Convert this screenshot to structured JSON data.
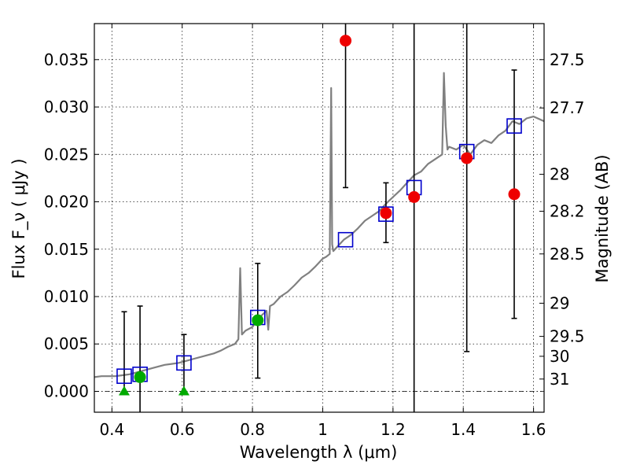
{
  "chart_data": {
    "type": "scatter",
    "xlabel": "Wavelength  λ (μm)",
    "ylabel": "Flux  F_ν  ( μJy )",
    "ylabel_right": "Magnitude (AB)",
    "xlim": [
      0.35,
      1.63
    ],
    "ylim": [
      -0.0022,
      0.0388
    ],
    "xticks": [
      0.4,
      0.6,
      0.8,
      1.0,
      1.2,
      1.4,
      1.6
    ],
    "xtick_labels": [
      "0.4",
      "0.6",
      "0.8",
      "1",
      "1.2",
      "1.4",
      "1.6"
    ],
    "yticks": [
      0.0,
      0.005,
      0.01,
      0.015,
      0.02,
      0.025,
      0.03,
      0.035
    ],
    "ytick_labels": [
      "0.000",
      "0.005",
      "0.010",
      "0.015",
      "0.020",
      "0.025",
      "0.030",
      "0.035"
    ],
    "grid": true,
    "mag_ticks": [
      {
        "label": "27.5",
        "flux": 0.035
      },
      {
        "label": "27.7",
        "flux": 0.0299
      },
      {
        "label": "28",
        "flux": 0.0229
      },
      {
        "label": "28.2",
        "flux": 0.019
      },
      {
        "label": "28.5",
        "flux": 0.0145
      },
      {
        "label": "29",
        "flux": 0.0093
      },
      {
        "label": "29.5",
        "flux": 0.0058
      },
      {
        "label": "30",
        "flux": 0.0037
      },
      {
        "label": "31",
        "flux": 0.0013
      }
    ],
    "reference_line_y": 0.0,
    "colors": {
      "model": "#808080",
      "model_points": "#0000cc",
      "detections_red": "#ee0000",
      "detections_green": "#00aa00",
      "errorbar": "#000000"
    },
    "series": [
      {
        "name": "model spectrum",
        "kind": "line",
        "x": [
          0.35,
          0.37,
          0.39,
          0.41,
          0.43,
          0.45,
          0.47,
          0.49,
          0.51,
          0.53,
          0.55,
          0.57,
          0.59,
          0.61,
          0.63,
          0.65,
          0.67,
          0.69,
          0.71,
          0.73,
          0.75,
          0.76,
          0.765,
          0.77,
          0.78,
          0.8,
          0.82,
          0.84,
          0.845,
          0.85,
          0.86,
          0.88,
          0.9,
          0.92,
          0.94,
          0.96,
          0.98,
          1.0,
          1.01,
          1.02,
          1.024,
          1.027,
          1.03,
          1.04,
          1.06,
          1.08,
          1.1,
          1.12,
          1.14,
          1.16,
          1.18,
          1.2,
          1.22,
          1.24,
          1.26,
          1.28,
          1.3,
          1.32,
          1.34,
          1.345,
          1.35,
          1.355,
          1.36,
          1.38,
          1.4,
          1.42,
          1.44,
          1.46,
          1.48,
          1.5,
          1.52,
          1.54,
          1.56,
          1.58,
          1.6,
          1.63
        ],
        "y": [
          0.0015,
          0.0016,
          0.0016,
          0.0016,
          0.0017,
          0.0018,
          0.002,
          0.0022,
          0.0024,
          0.0026,
          0.0028,
          0.0029,
          0.003,
          0.0032,
          0.0034,
          0.0036,
          0.0038,
          0.004,
          0.0043,
          0.0047,
          0.005,
          0.0055,
          0.013,
          0.006,
          0.0064,
          0.0068,
          0.0078,
          0.0085,
          0.0065,
          0.009,
          0.0092,
          0.01,
          0.0105,
          0.0112,
          0.012,
          0.0125,
          0.0132,
          0.014,
          0.0142,
          0.0145,
          0.032,
          0.0155,
          0.0148,
          0.0152,
          0.016,
          0.0165,
          0.0172,
          0.018,
          0.0185,
          0.019,
          0.0198,
          0.0205,
          0.0212,
          0.022,
          0.0228,
          0.0232,
          0.024,
          0.0245,
          0.025,
          0.0336,
          0.028,
          0.0255,
          0.0258,
          0.0255,
          0.026,
          0.025,
          0.026,
          0.0265,
          0.0262,
          0.027,
          0.0275,
          0.0285,
          0.0282,
          0.0288,
          0.029,
          0.0285
        ]
      },
      {
        "name": "model photometry",
        "kind": "square",
        "x": [
          0.435,
          0.48,
          0.605,
          0.815,
          1.065,
          1.18,
          1.26,
          1.41,
          1.545
        ],
        "y": [
          0.0016,
          0.0018,
          0.003,
          0.0078,
          0.016,
          0.0187,
          0.0215,
          0.0253,
          0.028
        ]
      },
      {
        "name": "observed (red)",
        "kind": "circle",
        "x": [
          1.065,
          1.18,
          1.26,
          1.41,
          1.545
        ],
        "y": [
          0.037,
          0.0188,
          0.0205,
          0.0246,
          0.0208
        ],
        "yerr_low": [
          0.0215,
          0.0157,
          -0.0022,
          0.0042,
          0.0077
        ],
        "yerr_high": [
          0.0388,
          0.022,
          0.0388,
          0.0388,
          0.0339
        ]
      },
      {
        "name": "observed (green)",
        "kind": "circle",
        "x": [
          0.48,
          0.815
        ],
        "y": [
          0.0015,
          0.0075
        ],
        "yerr_low": [
          -0.0022,
          0.0014
        ],
        "yerr_high": [
          0.009,
          0.0135
        ]
      },
      {
        "name": "upper limits (green)",
        "kind": "triangle",
        "x": [
          0.435,
          0.605
        ],
        "y": [
          0.0,
          0.0
        ],
        "yerr_low": [
          0.0,
          0.0
        ],
        "yerr_high": [
          0.0084,
          0.006
        ]
      }
    ]
  }
}
